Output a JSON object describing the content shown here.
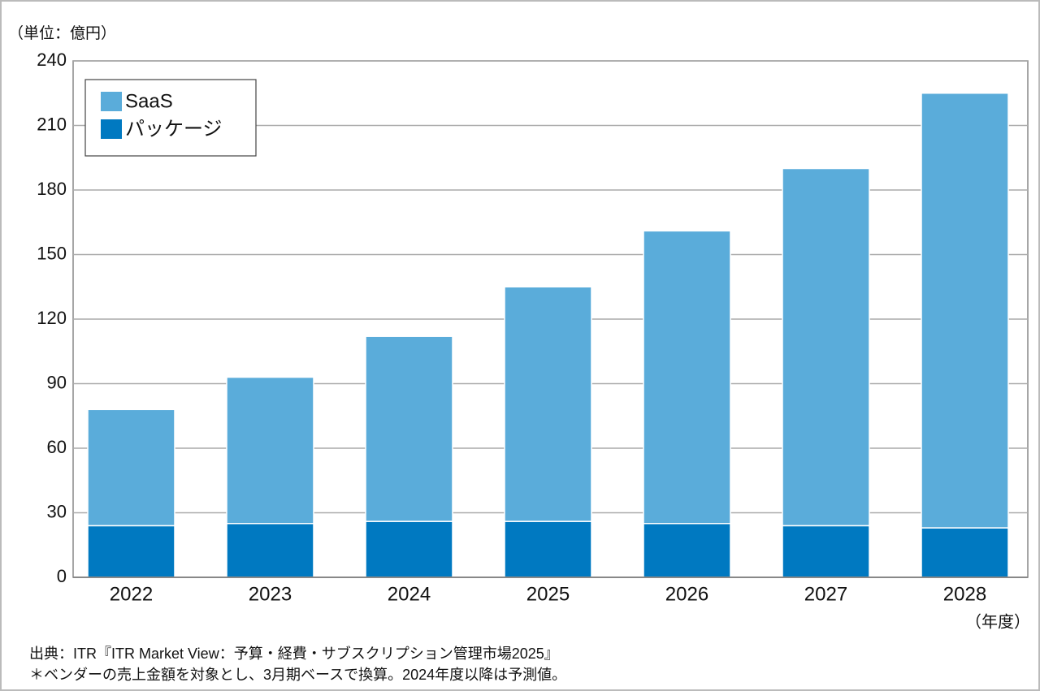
{
  "chart_data": {
    "type": "stacked_bar",
    "unit_label": "（単位：億円）",
    "x_unit_label": "（年度）",
    "categories": [
      "2022",
      "2023",
      "2024",
      "2025",
      "2026",
      "2027",
      "2028"
    ],
    "series": [
      {
        "name": "パッケージ",
        "color": "#0079c1",
        "values": [
          24,
          25,
          26,
          26,
          25,
          24,
          23
        ]
      },
      {
        "name": "SaaS",
        "color": "#5aacda",
        "values": [
          54,
          68,
          86,
          109,
          136,
          166,
          202
        ]
      }
    ],
    "ylim": [
      0,
      240
    ],
    "yticks": [
      0,
      30,
      60,
      90,
      120,
      150,
      180,
      210,
      240
    ],
    "grid": true,
    "notes": [
      "出典：ITR『ITR Market View：予算・経費・サブスクリプション管理市場2025』",
      "＊ベンダーの売上金額を対象とし、3月期ベースで換算。2024年度以降は予測値。"
    ]
  }
}
